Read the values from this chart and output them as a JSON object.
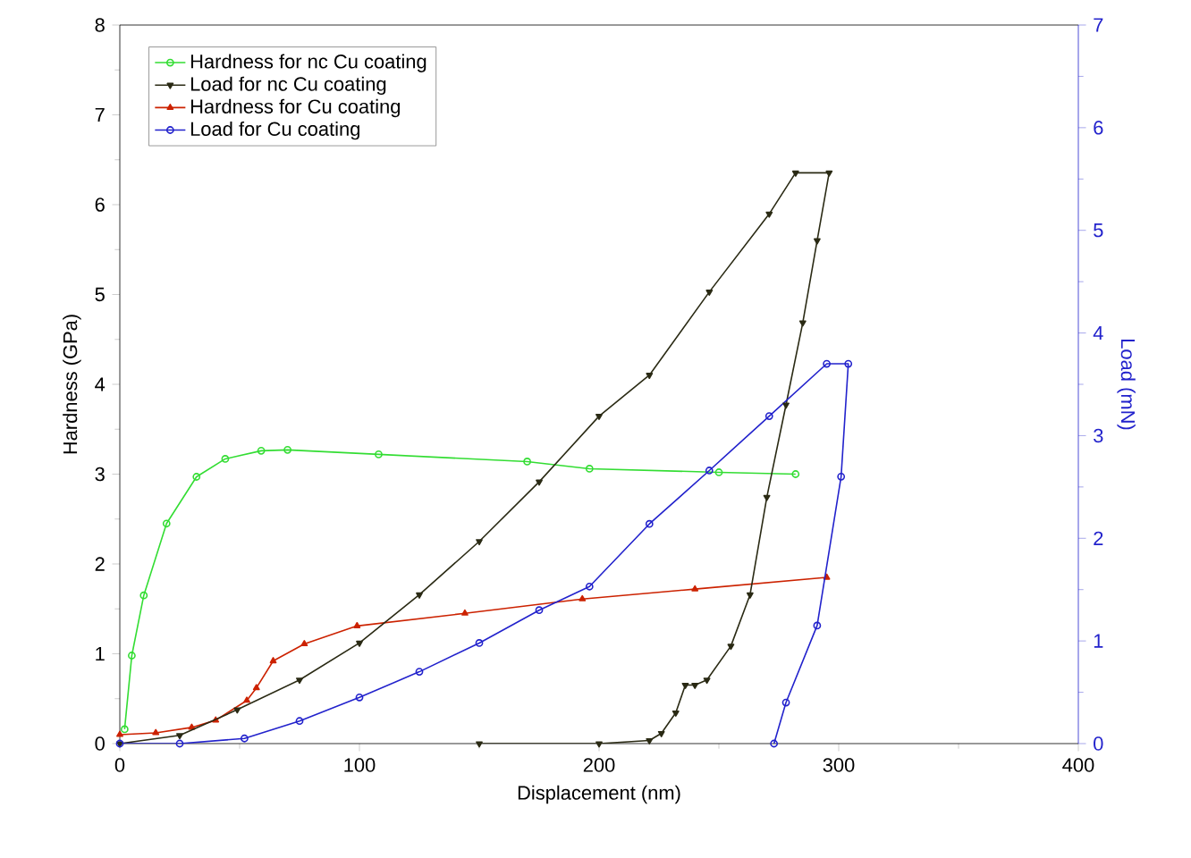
{
  "chart_data": {
    "type": "line",
    "xlabel": "Displacement (nm)",
    "ylabel": "Hardness (GPa)",
    "y2label": "Load (mN)",
    "xlim": [
      0,
      400
    ],
    "xticks": [
      0,
      100,
      200,
      300,
      400
    ],
    "ylim": [
      0,
      8
    ],
    "yticks": [
      0,
      1,
      2,
      3,
      4,
      5,
      6,
      7,
      8
    ],
    "y2lim": [
      0,
      7
    ],
    "y2ticks": [
      0,
      1,
      2,
      3,
      4,
      5,
      6,
      7
    ],
    "legend": "top left",
    "line_style": "solid",
    "series": [
      {
        "name": "Hardness for nc Cu coating",
        "color": "#33dd33",
        "marker": "circle",
        "x": [
          2,
          5,
          10,
          19.5,
          32,
          44,
          59,
          70,
          108,
          170,
          196,
          250,
          282
        ],
        "values": [
          0.16,
          0.98,
          1.65,
          2.45,
          2.97,
          3.17,
          3.26,
          3.27,
          3.22,
          3.14,
          3.06,
          3.02,
          3.0
        ]
      },
      {
        "name": "Load for nc Cu coating",
        "color": "#2a2a14",
        "marker": "triangle",
        "axis": "y2",
        "x": [
          0,
          25,
          49,
          75,
          100,
          125,
          150,
          175,
          200,
          221,
          246,
          271,
          282,
          296,
          291,
          285,
          278,
          270,
          263,
          255,
          245,
          240,
          236,
          232,
          226,
          221,
          200,
          150
        ],
        "values": [
          0,
          0.08,
          0.33,
          0.62,
          0.98,
          1.45,
          1.97,
          2.55,
          3.19,
          3.59,
          4.4,
          5.16,
          5.56,
          5.56,
          4.9,
          4.1,
          3.3,
          2.4,
          1.45,
          0.95,
          0.62,
          0.57,
          0.57,
          0.3,
          0.1,
          0.03,
          0,
          0
        ]
      },
      {
        "name": "Hardness for Cu coating",
        "color": "#cc2200",
        "marker": "triangle",
        "x": [
          0,
          15,
          30,
          40,
          53,
          57,
          64,
          77,
          99,
          144,
          193,
          240,
          295
        ],
        "values": [
          0.1,
          0.12,
          0.18,
          0.26,
          0.48,
          0.62,
          0.92,
          1.11,
          1.31,
          1.45,
          1.61,
          1.72,
          1.85
        ]
      },
      {
        "name": "Load for Cu coating",
        "color": "#2222cc",
        "marker": "circle",
        "axis": "y2",
        "x": [
          0,
          25,
          52,
          75,
          100,
          125,
          150,
          175,
          196,
          221,
          246,
          271,
          295,
          304,
          301,
          291,
          278,
          273
        ],
        "values": [
          0,
          0,
          0.05,
          0.22,
          0.45,
          0.7,
          0.98,
          1.3,
          1.53,
          2.14,
          2.66,
          3.19,
          3.7,
          3.7,
          2.6,
          1.15,
          0.4,
          0
        ]
      }
    ]
  }
}
